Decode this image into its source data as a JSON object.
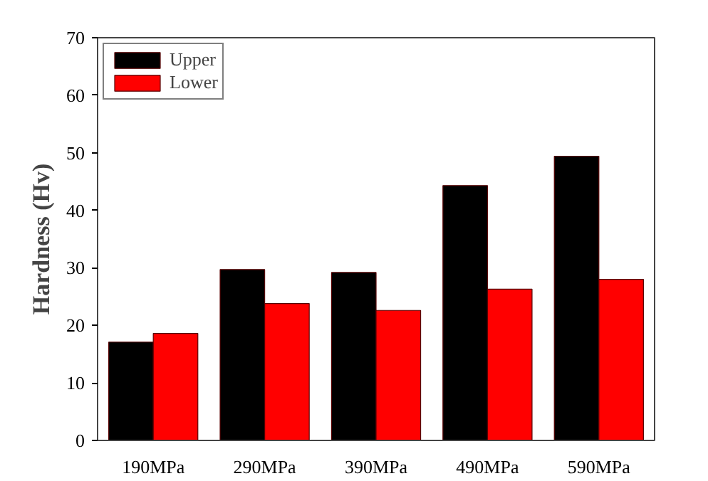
{
  "chart_data": {
    "type": "bar",
    "ylabel": "Hardness (Hv)",
    "categories": [
      "190MPa",
      "290MPa",
      "390MPa",
      "490MPa",
      "590MPa"
    ],
    "series": [
      {
        "name": "Upper",
        "color": "#000000",
        "values": [
          17.1,
          29.7,
          29.2,
          44.3,
          49.4
        ]
      },
      {
        "name": "Lower",
        "color": "#ff0000",
        "values": [
          18.6,
          23.8,
          22.6,
          26.3,
          28.0
        ]
      }
    ],
    "ylim": [
      0,
      70
    ],
    "yticks": [
      0,
      10,
      20,
      30,
      40,
      50,
      60,
      70
    ],
    "grid": false,
    "legend": "top left"
  }
}
